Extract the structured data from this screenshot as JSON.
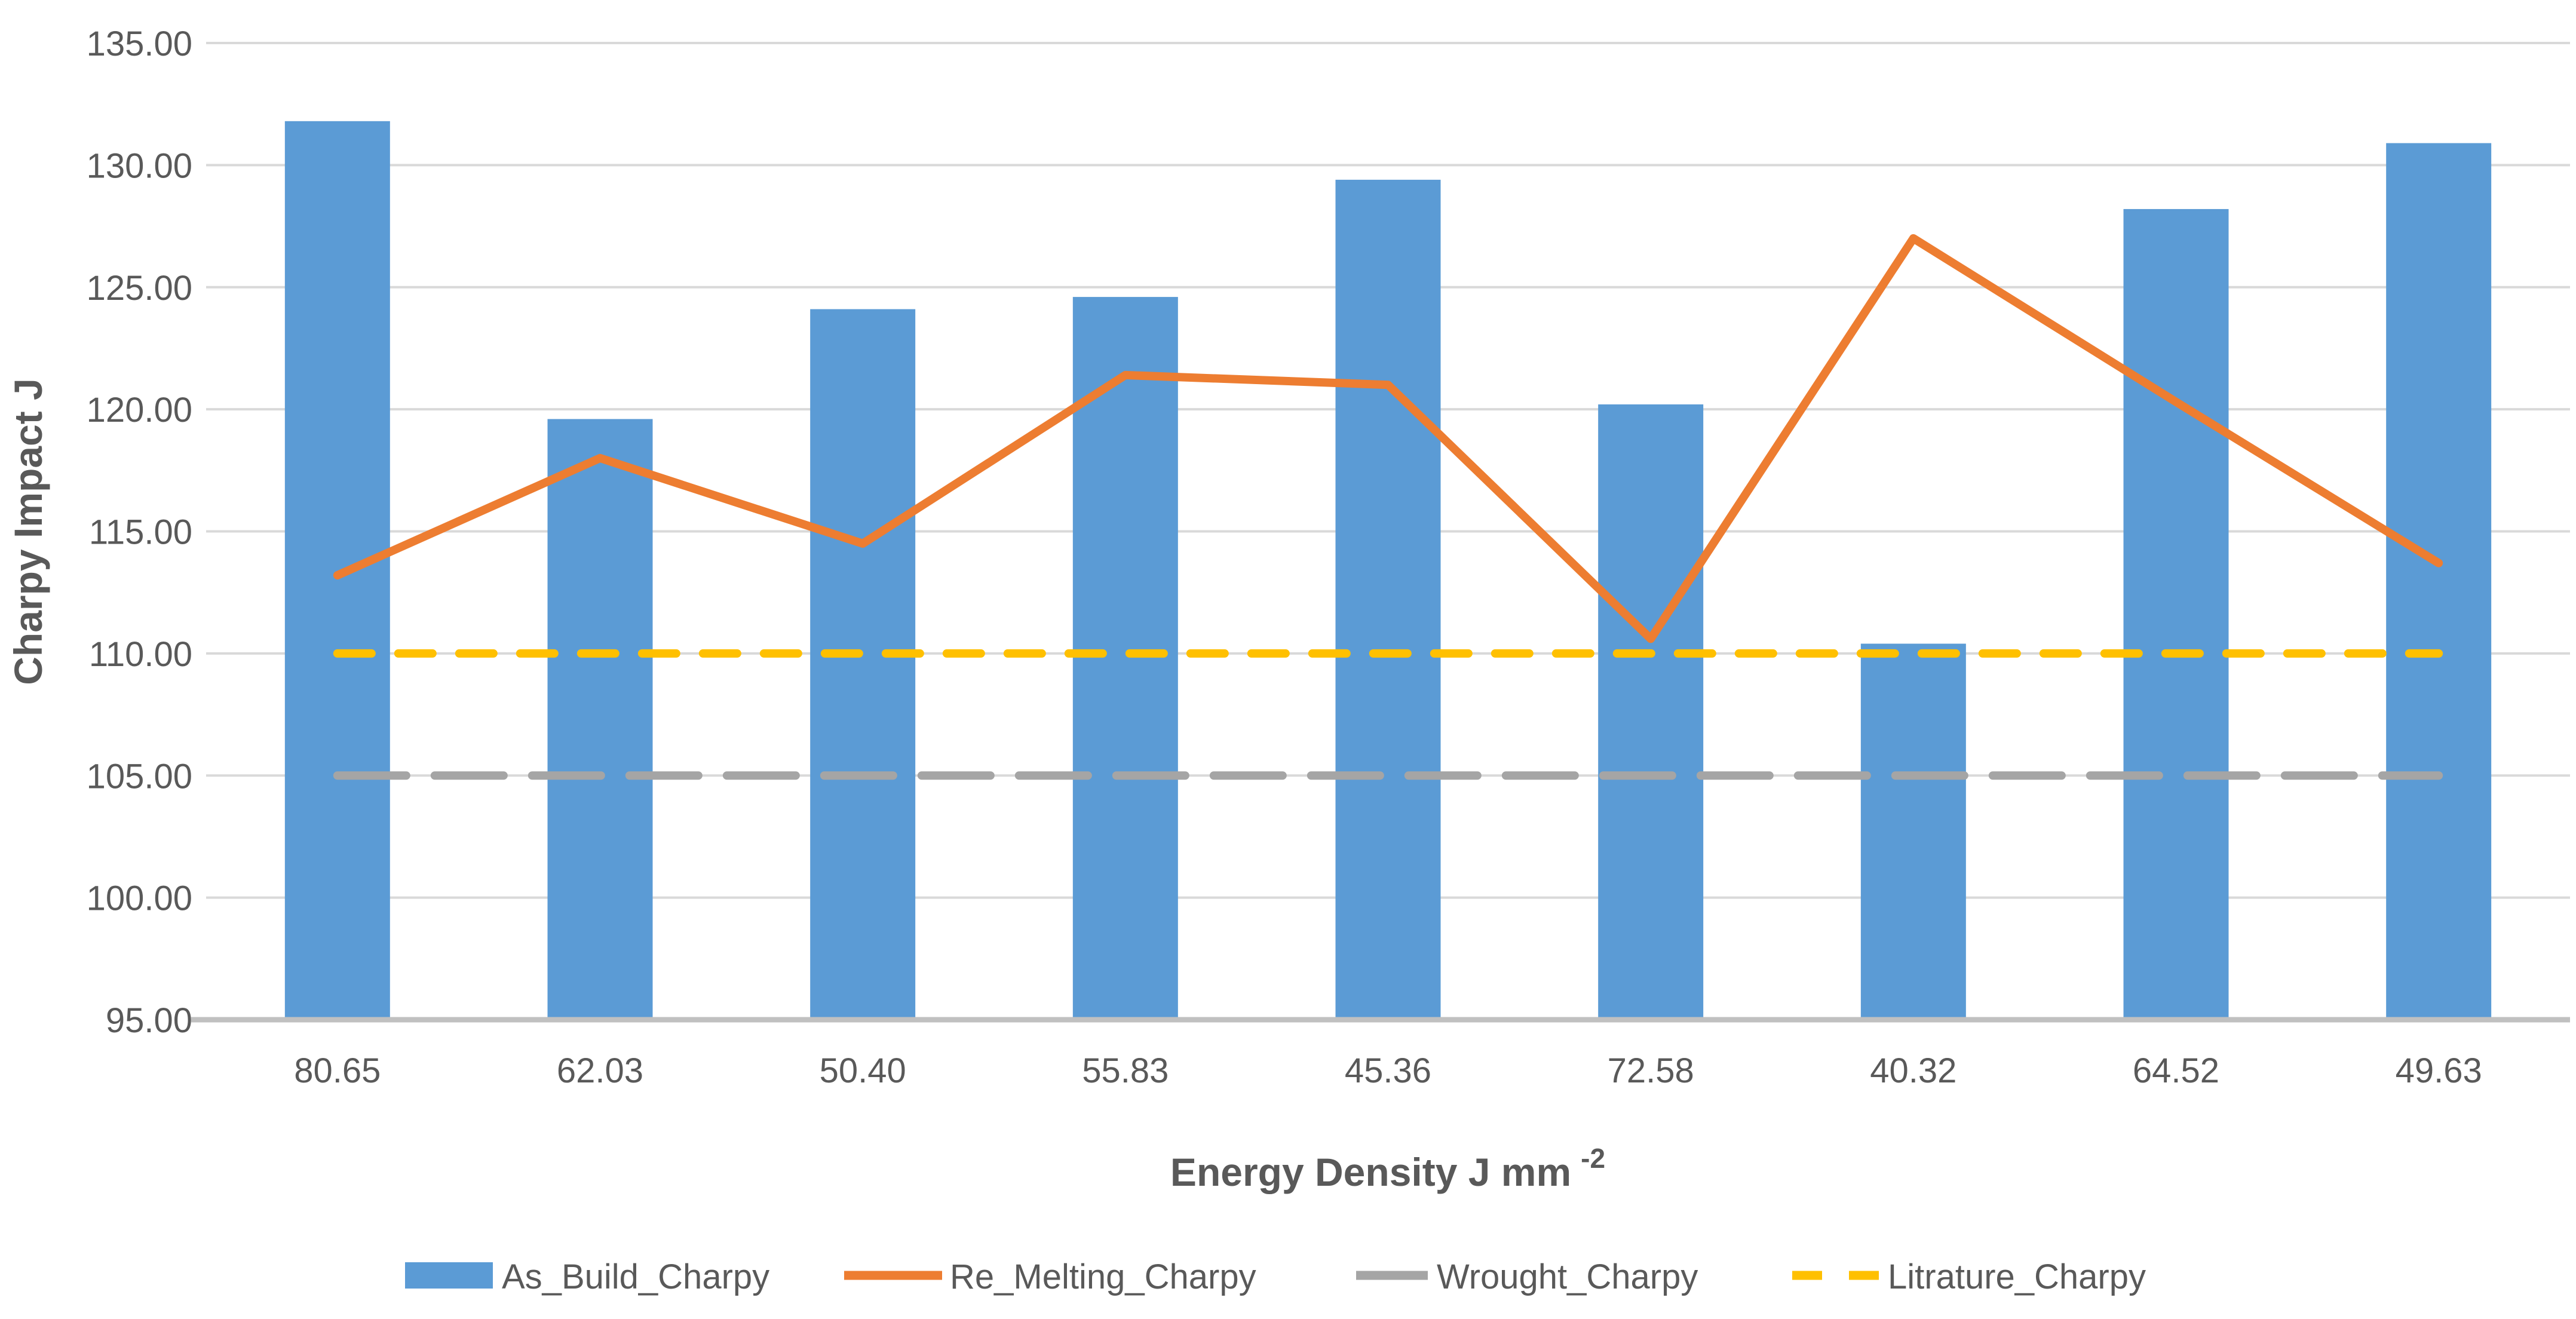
{
  "chart_data": {
    "type": "bar",
    "subtype": "combo-bar-line",
    "title": "",
    "xlabel": "Energy Density J mm",
    "xlabel_superscript": "-2",
    "ylabel": "Charpy Impact J",
    "categories": [
      "80.65",
      "62.03",
      "50.40",
      "55.83",
      "45.36",
      "72.58",
      "40.32",
      "64.52",
      "49.63"
    ],
    "series": [
      {
        "name": "As_Build_Charpy",
        "type": "bar",
        "color": "#5B9BD5",
        "values": [
          131.8,
          119.6,
          124.1,
          124.6,
          129.4,
          120.2,
          110.4,
          128.2,
          130.9
        ]
      },
      {
        "name": "Re_Melting_Charpy",
        "type": "line",
        "color": "#ED7D31",
        "values": [
          113.2,
          118.0,
          114.5,
          121.4,
          121.0,
          110.6,
          127.0,
          120.3,
          113.7
        ]
      },
      {
        "name": "Wrought_Charpy",
        "type": "line-dashed",
        "color": "#A5A5A5",
        "dash": "long",
        "values": [
          105,
          105,
          105,
          105,
          105,
          105,
          105,
          105,
          105
        ]
      },
      {
        "name": "Litrature_Charpy",
        "type": "line-dashed",
        "color": "#FFC000",
        "dash": "square",
        "values": [
          110,
          110,
          110,
          110,
          110,
          110,
          110,
          110,
          110
        ]
      }
    ],
    "ylim": [
      95,
      135
    ],
    "ytick_step": 5,
    "ytick_labels": [
      "135.00",
      "130.00",
      "125.00",
      "120.00",
      "115.00",
      "110.00",
      "105.00",
      "100.00",
      "95.00"
    ],
    "grid": true,
    "legend_position": "bottom",
    "colors": {
      "background": "#FFFFFF",
      "gridline": "#D9D9D9",
      "axis_line": "#C0C0C0",
      "text": "#595959"
    }
  }
}
